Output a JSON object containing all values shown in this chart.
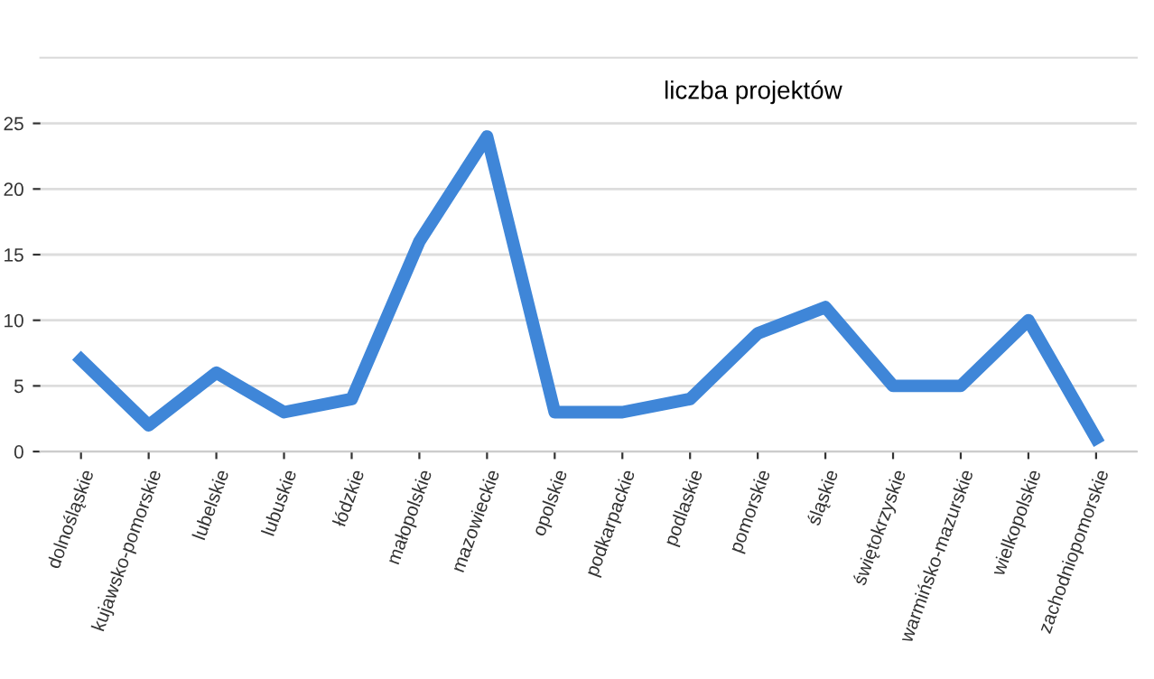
{
  "chart_data": {
    "type": "line",
    "categories": [
      "dolnośląskie",
      "kujawsko-pomorskie",
      "lubelskie",
      "lubuskie",
      "łódzkie",
      "małopolskie",
      "mazowieckie",
      "opolskie",
      "podkarpackie",
      "podlaskie",
      "pomorskie",
      "śląskie",
      "świętokrzyskie",
      "warmińsko-mazurskie",
      "wielkopolskie",
      "zachodniopomorskie"
    ],
    "series": [
      {
        "name": "liczba projektów",
        "color": "#3f86d8",
        "values": [
          7,
          2,
          6,
          3,
          4,
          16,
          24,
          3,
          3,
          4,
          9,
          11,
          5,
          5,
          10,
          1
        ]
      }
    ],
    "ylim": [
      0,
      30
    ],
    "yticks": [
      0,
      5,
      10,
      15,
      20,
      25
    ],
    "grid": "y",
    "legend": "top",
    "marker": "none",
    "line_style": "solid"
  }
}
